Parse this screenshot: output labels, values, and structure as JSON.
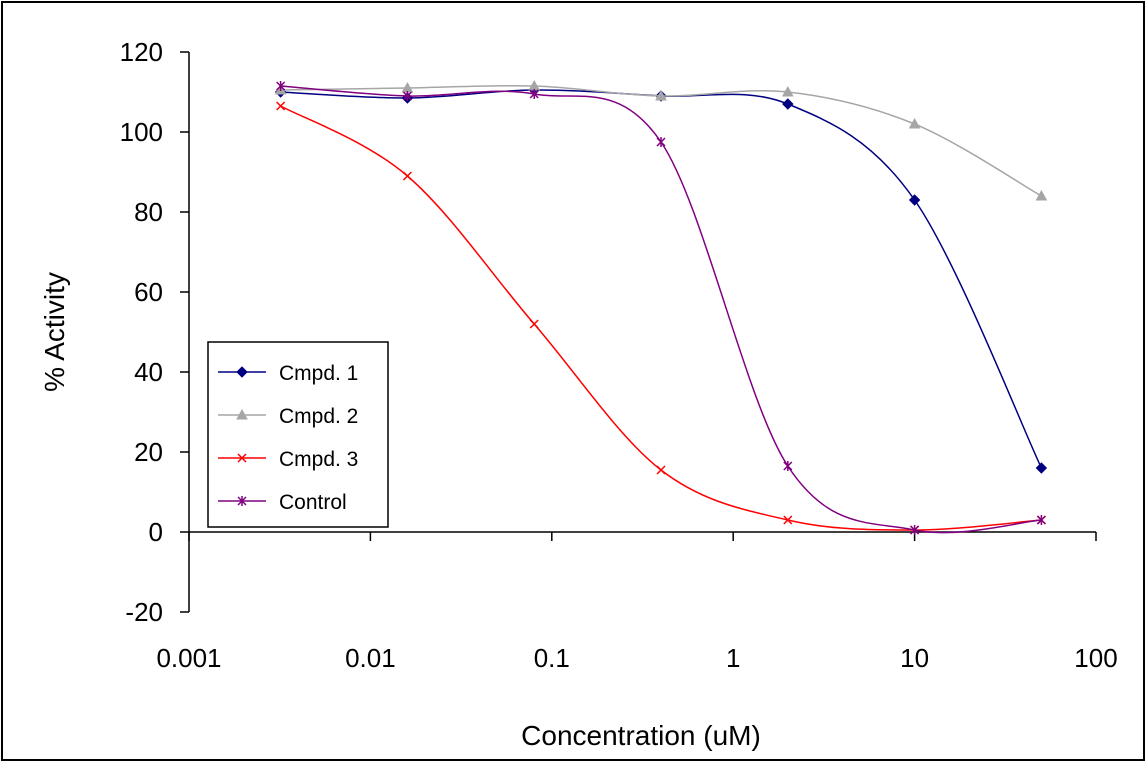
{
  "chart_data": {
    "type": "line",
    "xscale": "log",
    "xlabel": "Concentration (uM)",
    "ylabel": "% Activity",
    "xlim": [
      0.001,
      100
    ],
    "ylim": [
      -20,
      120
    ],
    "x_ticks": [
      {
        "value": 0.001,
        "label": "0.001"
      },
      {
        "value": 0.01,
        "label": "0.01"
      },
      {
        "value": 0.1,
        "label": "0.1"
      },
      {
        "value": 1,
        "label": "1"
      },
      {
        "value": 10,
        "label": "10"
      },
      {
        "value": 100,
        "label": "100"
      }
    ],
    "y_ticks": [
      {
        "value": 120,
        "label": "120"
      },
      {
        "value": 100,
        "label": "100"
      },
      {
        "value": 80,
        "label": "80"
      },
      {
        "value": 60,
        "label": "60"
      },
      {
        "value": 40,
        "label": "40"
      },
      {
        "value": 20,
        "label": "20"
      },
      {
        "value": 0,
        "label": "0"
      },
      {
        "value": -20,
        "label": "-20"
      }
    ],
    "grid": false,
    "legend_position": "left",
    "x": [
      0.0032,
      0.016,
      0.08,
      0.4,
      2,
      10,
      50
    ],
    "series": [
      {
        "name": "Cmpd. 1",
        "color": "#000080",
        "marker": "diamond",
        "values": [
          110,
          108.5,
          110.5,
          109,
          107,
          83,
          16
        ]
      },
      {
        "name": "Cmpd. 2",
        "color": "#a6a6a6",
        "marker": "triangle",
        "values": [
          110.5,
          111,
          111.5,
          109,
          110,
          102,
          84
        ]
      },
      {
        "name": "Cmpd. 3",
        "color": "#ff0000",
        "marker": "x",
        "values": [
          106.5,
          89,
          52,
          15.5,
          3,
          0.5,
          3
        ]
      },
      {
        "name": "Control",
        "color": "#800080",
        "marker": "star",
        "values": [
          111.5,
          109,
          109.5,
          97.5,
          16.5,
          0.5,
          3
        ]
      }
    ]
  }
}
